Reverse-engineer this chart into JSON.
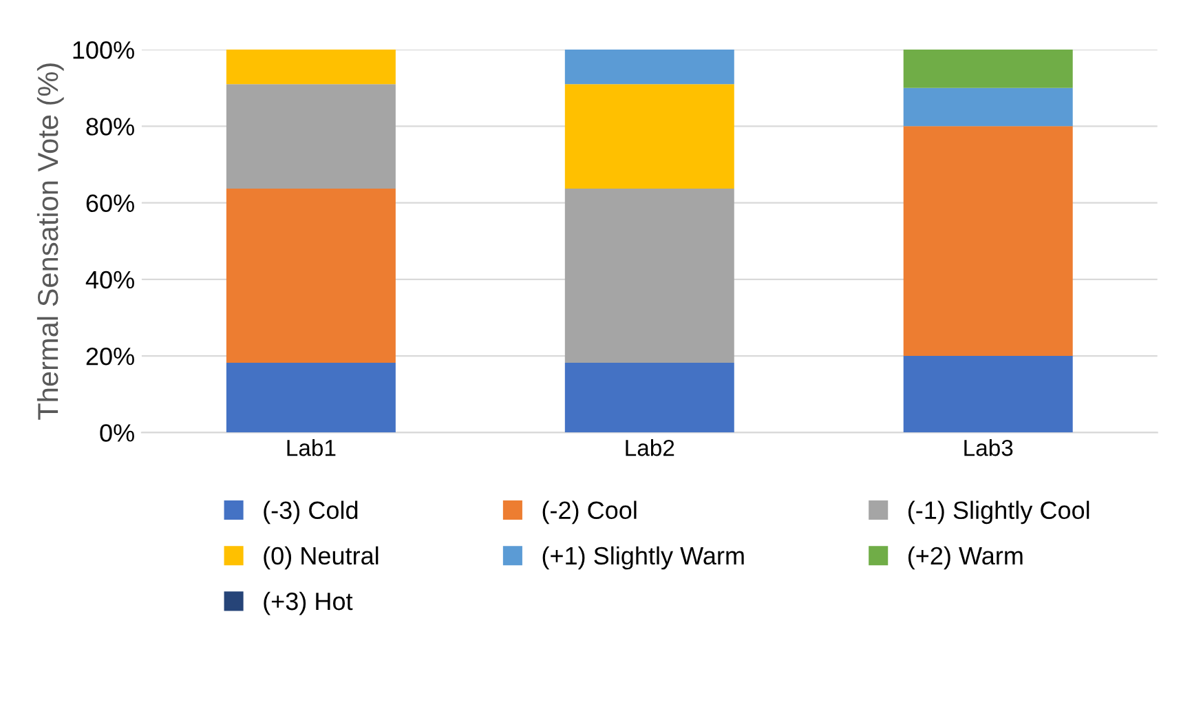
{
  "chart_data": {
    "type": "bar",
    "stacked": true,
    "ylabel": "Thermal Sensation Vote (%)",
    "categories": [
      "Lab1",
      "Lab2",
      "Lab3"
    ],
    "series": [
      {
        "name": "(-3) Cold",
        "color": "#4472c4",
        "values": [
          18.2,
          18.2,
          20
        ]
      },
      {
        "name": "(-2) Cool",
        "color": "#ed7d31",
        "values": [
          45.5,
          0,
          60
        ]
      },
      {
        "name": "(-1) Slightly Cool",
        "color": "#a5a5a5",
        "values": [
          27.3,
          45.5,
          0
        ]
      },
      {
        "name": "(0) Neutral",
        "color": "#ffc000",
        "values": [
          9.1,
          27.3,
          0
        ]
      },
      {
        "name": "(+1) Slightly Warm",
        "color": "#5b9bd5",
        "values": [
          0,
          9.1,
          10
        ]
      },
      {
        "name": "(+2) Warm",
        "color": "#70ad47",
        "values": [
          0,
          0,
          10
        ]
      },
      {
        "name": "(+3) Hot",
        "color": "#264478",
        "values": [
          0,
          0,
          0
        ]
      }
    ],
    "ylim": [
      0,
      100
    ],
    "yticks": [
      {
        "value": 0,
        "label": "0%"
      },
      {
        "value": 20,
        "label": "20%"
      },
      {
        "value": 40,
        "label": "40%"
      },
      {
        "value": 60,
        "label": "60%"
      },
      {
        "value": 80,
        "label": "80%"
      },
      {
        "value": 100,
        "label": "100%"
      }
    ],
    "grid": "y",
    "legend": "bottom"
  }
}
